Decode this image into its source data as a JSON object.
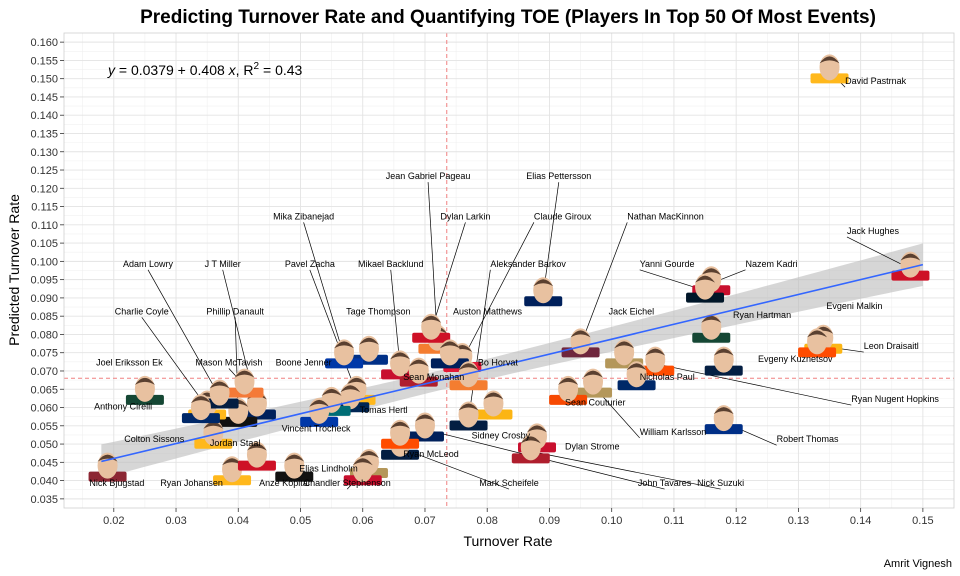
{
  "chart_data": {
    "type": "scatter",
    "title": "Predicting Turnover Rate and Quantifying TOE (Players In Top 50 Of Most Events)",
    "xlabel": "Turnover Rate",
    "ylabel": "Predicted Turnover Rate",
    "caption": "Amrit Vignesh",
    "xlim": [
      0.012,
      0.155
    ],
    "ylim": [
      0.0325,
      0.1625
    ],
    "x_ticks": [
      0.02,
      0.03,
      0.04,
      0.05,
      0.06,
      0.07,
      0.08,
      0.09,
      0.1,
      0.11,
      0.12,
      0.13,
      0.14,
      0.15
    ],
    "x_tick_labels": [
      "0.02",
      "0.03",
      "0.04",
      "0.05",
      "0.06",
      "0.07",
      "0.08",
      "0.09",
      "0.10",
      "0.11",
      "0.12",
      "0.13",
      "0.14",
      "0.15"
    ],
    "y_ticks": [
      0.035,
      0.04,
      0.045,
      0.05,
      0.055,
      0.06,
      0.065,
      0.07,
      0.075,
      0.08,
      0.085,
      0.09,
      0.095,
      0.1,
      0.105,
      0.11,
      0.115,
      0.12,
      0.125,
      0.13,
      0.135,
      0.14,
      0.145,
      0.15,
      0.155,
      0.16
    ],
    "y_tick_labels": [
      "0.035",
      "0.040",
      "0.045",
      "0.050",
      "0.055",
      "0.060",
      "0.065",
      "0.070",
      "0.075",
      "0.080",
      "0.085",
      "0.090",
      "0.095",
      "0.100",
      "0.105",
      "0.110",
      "0.115",
      "0.120",
      "0.125",
      "0.130",
      "0.135",
      "0.140",
      "0.145",
      "0.150",
      "0.155",
      "0.160"
    ],
    "grid": true,
    "equation": {
      "y": "y",
      "eq": " = 0.0379 + 0.408 ",
      "x": "x",
      "r": ", R",
      "sup": "2",
      "tail": " = 0.43"
    },
    "regression": {
      "intercept": 0.0379,
      "slope": 0.408,
      "x_range": [
        0.018,
        0.15
      ]
    },
    "mean_x": 0.0735,
    "mean_y": 0.068,
    "points": [
      {
        "name": "David Pastrnak",
        "x": 0.135,
        "y": 0.152,
        "color": "#FFB81C"
      },
      {
        "name": "Jack Hughes",
        "x": 0.148,
        "y": 0.098,
        "color": "#CE1126"
      },
      {
        "name": "Evgeni Malkin",
        "x": 0.134,
        "y": 0.078,
        "color": "#FCB514"
      },
      {
        "name": "Leon Draisaitl",
        "x": 0.133,
        "y": 0.077,
        "color": "#FF4C00"
      },
      {
        "name": "Nazem Kadri",
        "x": 0.116,
        "y": 0.094,
        "color": "#C8102E"
      },
      {
        "name": "Yanni Gourde",
        "x": 0.115,
        "y": 0.092,
        "color": "#001628"
      },
      {
        "name": "Ryan Hartman",
        "x": 0.116,
        "y": 0.081,
        "color": "#154734"
      },
      {
        "name": "Evgeny Kuznetsov",
        "x": 0.118,
        "y": 0.072,
        "color": "#041E42"
      },
      {
        "name": "Ryan Nugent Hopkins",
        "x": 0.107,
        "y": 0.072,
        "color": "#FF4C00"
      },
      {
        "name": "Jack Eichel",
        "x": 0.102,
        "y": 0.074,
        "color": "#B4975A"
      },
      {
        "name": "Nicholas Paul",
        "x": 0.104,
        "y": 0.068,
        "color": "#002868"
      },
      {
        "name": "William Karlsson",
        "x": 0.097,
        "y": 0.066,
        "color": "#B4975A"
      },
      {
        "name": "Robert Thomas",
        "x": 0.118,
        "y": 0.056,
        "color": "#002F87"
      },
      {
        "name": "Sean Couturier",
        "x": 0.093,
        "y": 0.064,
        "color": "#F74902"
      },
      {
        "name": "Elias Pettersson",
        "x": 0.089,
        "y": 0.091,
        "color": "#00205B"
      },
      {
        "name": "Nathan MacKinnon",
        "x": 0.095,
        "y": 0.077,
        "color": "#6F263D"
      },
      {
        "name": "Dylan Strome",
        "x": 0.088,
        "y": 0.051,
        "color": "#C8102E"
      },
      {
        "name": "Nick Suzuki",
        "x": 0.087,
        "y": 0.048,
        "color": "#AF1E2D"
      },
      {
        "name": "Claude Giroux",
        "x": 0.076,
        "y": 0.073,
        "color": "#E31837"
      },
      {
        "name": "Sidney Crosby",
        "x": 0.081,
        "y": 0.06,
        "color": "#FCB514"
      },
      {
        "name": "Aleksander Barkov",
        "x": 0.077,
        "y": 0.057,
        "color": "#041E42"
      },
      {
        "name": "Mark Scheifele",
        "x": 0.066,
        "y": 0.049,
        "color": "#041E42"
      },
      {
        "name": "John Tavares",
        "x": 0.07,
        "y": 0.054,
        "color": "#00205B"
      },
      {
        "name": "Ryan McLeod",
        "x": 0.066,
        "y": 0.052,
        "color": "#FF4C00"
      },
      {
        "name": "Jean Gabriel Pageau",
        "x": 0.072,
        "y": 0.078,
        "color": "#F47D30"
      },
      {
        "name": "Dylan Larkin",
        "x": 0.071,
        "y": 0.081,
        "color": "#CE1126"
      },
      {
        "name": "Auston Matthews",
        "x": 0.074,
        "y": 0.074,
        "color": "#00205B"
      },
      {
        "name": "Bo Horvat",
        "x": 0.077,
        "y": 0.068,
        "color": "#F47D30"
      },
      {
        "name": "Mikael Backlund",
        "x": 0.066,
        "y": 0.071,
        "color": "#C8102E"
      },
      {
        "name": "Tage Thompson",
        "x": 0.061,
        "y": 0.075,
        "color": "#003087"
      },
      {
        "name": "Sean Monahan",
        "x": 0.069,
        "y": 0.069,
        "color": "#AF1E2D"
      },
      {
        "name": "Mika Zibanejad",
        "x": 0.057,
        "y": 0.074,
        "color": "#0038A8"
      },
      {
        "name": "Pavel Zacha",
        "x": 0.059,
        "y": 0.064,
        "color": "#FFB81C"
      },
      {
        "name": "Boone Jenner",
        "x": 0.058,
        "y": 0.062,
        "color": "#002654"
      },
      {
        "name": "Tomas Hertl",
        "x": 0.055,
        "y": 0.061,
        "color": "#006D75"
      },
      {
        "name": "Vincent Trocheck",
        "x": 0.053,
        "y": 0.058,
        "color": "#0038A8"
      },
      {
        "name": "Chandler Stephenson",
        "x": 0.061,
        "y": 0.044,
        "color": "#B4975A"
      },
      {
        "name": "Elias Lindholm",
        "x": 0.06,
        "y": 0.042,
        "color": "#C8102E"
      },
      {
        "name": "Anze Kopitar",
        "x": 0.049,
        "y": 0.043,
        "color": "#111111"
      },
      {
        "name": "Ryan Johansen",
        "x": 0.039,
        "y": 0.042,
        "color": "#FFB81C"
      },
      {
        "name": "Jordan Staal",
        "x": 0.043,
        "y": 0.046,
        "color": "#CE1126"
      },
      {
        "name": "J T  Miller",
        "x": 0.043,
        "y": 0.06,
        "color": "#00205B"
      },
      {
        "name": "Mason McTavish",
        "x": 0.041,
        "y": 0.066,
        "color": "#F47A38"
      },
      {
        "name": "Phillip Danault",
        "x": 0.04,
        "y": 0.058,
        "color": "#111111"
      },
      {
        "name": "Charlie Coyle",
        "x": 0.035,
        "y": 0.06,
        "color": "#FFB81C"
      },
      {
        "name": "Adam Lowry",
        "x": 0.037,
        "y": 0.063,
        "color": "#041E42"
      },
      {
        "name": "Colton Sissons",
        "x": 0.036,
        "y": 0.052,
        "color": "#FFB81C"
      },
      {
        "name": "Joel Eriksson Ek",
        "x": 0.025,
        "y": 0.064,
        "color": "#154734"
      },
      {
        "name": "Anthony Cirelli",
        "x": 0.034,
        "y": 0.059,
        "color": "#002868"
      },
      {
        "name": "Nick Bjugstad",
        "x": 0.019,
        "y": 0.043,
        "color": "#8C2633"
      }
    ],
    "labels": [
      {
        "name": "David Pastrnak",
        "lx": 0.1375,
        "ly": 0.1485,
        "anchor": "start"
      },
      {
        "name": "Jack Hughes",
        "lx": 0.1378,
        "ly": 0.1075,
        "anchor": "start"
      },
      {
        "name": "Evgeni Malkin",
        "lx": 0.1345,
        "ly": 0.087,
        "anchor": "start"
      },
      {
        "name": "Leon Draisaitl",
        "lx": 0.1405,
        "ly": 0.076,
        "anchor": "start"
      },
      {
        "name": "Nazem Kadri",
        "lx": 0.1215,
        "ly": 0.0985,
        "anchor": "start"
      },
      {
        "name": "Yanni Gourde",
        "lx": 0.1045,
        "ly": 0.0985,
        "anchor": "start"
      },
      {
        "name": "Ryan Hartman",
        "lx": 0.1195,
        "ly": 0.0845,
        "anchor": "start"
      },
      {
        "name": "Evgeny Kuznetsov",
        "lx": 0.1235,
        "ly": 0.0725,
        "anchor": "start"
      },
      {
        "name": "Ryan Nugent Hopkins",
        "lx": 0.1385,
        "ly": 0.0615,
        "anchor": "start"
      },
      {
        "name": "Jack Eichel",
        "lx": 0.0995,
        "ly": 0.0855,
        "anchor": "start"
      },
      {
        "name": "Nicholas Paul",
        "lx": 0.1045,
        "ly": 0.0675,
        "anchor": "start"
      },
      {
        "name": "William Karlsson",
        "lx": 0.1045,
        "ly": 0.0525,
        "anchor": "start"
      },
      {
        "name": "Robert Thomas",
        "lx": 0.1265,
        "ly": 0.0505,
        "anchor": "start"
      },
      {
        "name": "Sean Couturier",
        "lx": 0.0925,
        "ly": 0.0605,
        "anchor": "start"
      },
      {
        "name": "Elias Pettersson",
        "lx": 0.0915,
        "ly": 0.1225,
        "anchor": "middle"
      },
      {
        "name": "Nathan MacKinnon",
        "lx": 0.1025,
        "ly": 0.1115,
        "anchor": "start"
      },
      {
        "name": "Dylan Strome",
        "lx": 0.0925,
        "ly": 0.0485,
        "anchor": "start"
      },
      {
        "name": "Nick Suzuki",
        "lx": 0.1175,
        "ly": 0.0385,
        "anchor": "middle"
      },
      {
        "name": "Claude Giroux",
        "lx": 0.0875,
        "ly": 0.1115,
        "anchor": "start"
      },
      {
        "name": "Sidney Crosby",
        "lx": 0.0775,
        "ly": 0.0515,
        "anchor": "start"
      },
      {
        "name": "Aleksander Barkov",
        "lx": 0.0805,
        "ly": 0.0985,
        "anchor": "start"
      },
      {
        "name": "Mark Scheifele",
        "lx": 0.0835,
        "ly": 0.0385,
        "anchor": "middle"
      },
      {
        "name": "John Tavares",
        "lx": 0.1085,
        "ly": 0.0385,
        "anchor": "middle"
      },
      {
        "name": "Ryan McLeod",
        "lx": 0.0665,
        "ly": 0.0465,
        "anchor": "start"
      },
      {
        "name": "Jean Gabriel Pageau",
        "lx": 0.0705,
        "ly": 0.1225,
        "anchor": "middle"
      },
      {
        "name": "Dylan Larkin",
        "lx": 0.0765,
        "ly": 0.1115,
        "anchor": "middle"
      },
      {
        "name": "Auston Matthews",
        "lx": 0.0745,
        "ly": 0.0855,
        "anchor": "start"
      },
      {
        "name": "Bo Horvat",
        "lx": 0.0785,
        "ly": 0.0715,
        "anchor": "start"
      },
      {
        "name": "Mikael Backlund",
        "lx": 0.0645,
        "ly": 0.0985,
        "anchor": "middle"
      },
      {
        "name": "Tage Thompson",
        "lx": 0.0625,
        "ly": 0.0855,
        "anchor": "middle"
      },
      {
        "name": "Sean Monahan",
        "lx": 0.0665,
        "ly": 0.0675,
        "anchor": "start"
      },
      {
        "name": "Mika Zibanejad",
        "lx": 0.0505,
        "ly": 0.1115,
        "anchor": "middle"
      },
      {
        "name": "Pavel Zacha",
        "lx": 0.0515,
        "ly": 0.0985,
        "anchor": "middle"
      },
      {
        "name": "Boone Jenner",
        "lx": 0.0505,
        "ly": 0.0715,
        "anchor": "middle"
      },
      {
        "name": "Tomas Hertl",
        "lx": 0.0595,
        "ly": 0.0585,
        "anchor": "start"
      },
      {
        "name": "Vincent Trocheck",
        "lx": 0.0525,
        "ly": 0.0535,
        "anchor": "middle"
      },
      {
        "name": "Chandler Stephenson",
        "lx": 0.0575,
        "ly": 0.0385,
        "anchor": "middle"
      },
      {
        "name": "Elias Lindholm",
        "lx": 0.0545,
        "ly": 0.0425,
        "anchor": "middle"
      },
      {
        "name": "Anze Kopitar",
        "lx": 0.0475,
        "ly": 0.0385,
        "anchor": "middle"
      },
      {
        "name": "Ryan Johansen",
        "lx": 0.0325,
        "ly": 0.0385,
        "anchor": "middle"
      },
      {
        "name": "Jordan Staal",
        "lx": 0.0395,
        "ly": 0.0495,
        "anchor": "middle"
      },
      {
        "name": "J T  Miller",
        "lx": 0.0375,
        "ly": 0.0985,
        "anchor": "middle"
      },
      {
        "name": "Mason McTavish",
        "lx": 0.0385,
        "ly": 0.0715,
        "anchor": "middle"
      },
      {
        "name": "Phillip Danault",
        "lx": 0.0395,
        "ly": 0.0855,
        "anchor": "middle"
      },
      {
        "name": "Charlie Coyle",
        "lx": 0.0245,
        "ly": 0.0855,
        "anchor": "middle"
      },
      {
        "name": "Adam Lowry",
        "lx": 0.0255,
        "ly": 0.0985,
        "anchor": "middle"
      },
      {
        "name": "Colton Sissons",
        "lx": 0.0265,
        "ly": 0.0505,
        "anchor": "middle"
      },
      {
        "name": "Joel Eriksson Ek",
        "lx": 0.0225,
        "ly": 0.0715,
        "anchor": "middle"
      },
      {
        "name": "Anthony Cirelli",
        "lx": 0.0215,
        "ly": 0.0595,
        "anchor": "middle"
      },
      {
        "name": "Nick Bjugstad",
        "lx": 0.0205,
        "ly": 0.0385,
        "anchor": "middle"
      }
    ],
    "leader_lines": [
      "David Pastrnak",
      "Jack Hughes",
      "Leon Draisaitl",
      "Nazem Kadri",
      "Yanni Gourde",
      "Ryan Nugent Hopkins",
      "Robert Thomas",
      "William Karlsson",
      "Nathan MacKinnon",
      "Elias Pettersson",
      "Nick Suzuki",
      "Claude Giroux",
      "Aleksander Barkov",
      "Mark Scheifele",
      "John Tavares",
      "Jean Gabriel Pageau",
      "Dylan Larkin",
      "Mikael Backlund",
      "Mika Zibanejad",
      "Pavel Zacha",
      "J T  Miller",
      "Adam Lowry",
      "Charlie Coyle",
      "Phillip Danault",
      "Chandler Stephenson",
      "Mason McTavish"
    ]
  }
}
